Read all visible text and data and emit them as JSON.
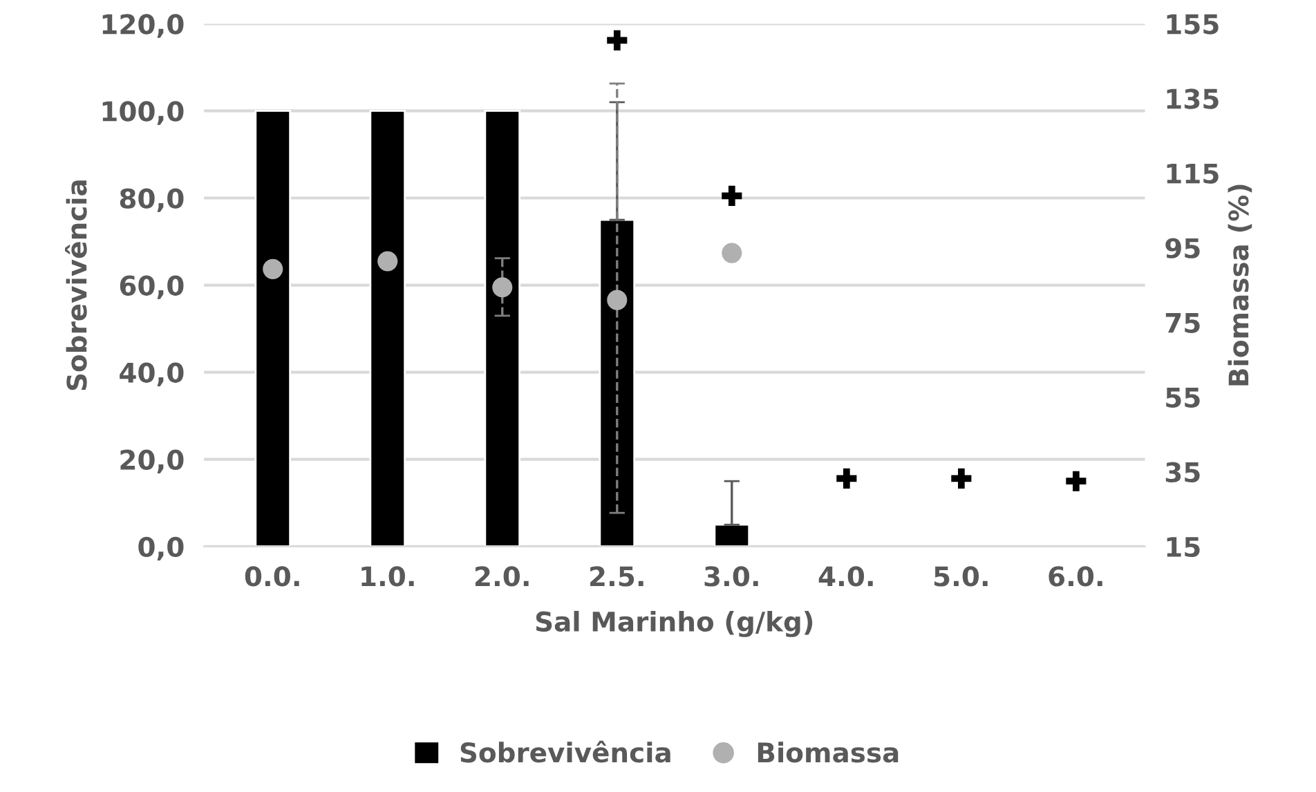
{
  "chart_data": {
    "type": "bar",
    "xlabel": "Sal Marinho (g/kg)",
    "ylabel": "Sobrevivência",
    "y2label": "Biomassa (%)",
    "categories": [
      "0.0.",
      "1.0.",
      "2.0.",
      "2.5.",
      "3.0.",
      "4.0.",
      "5.0.",
      "6.0."
    ],
    "series": [
      {
        "name": "Sobrevivência",
        "color": "#000000",
        "values": [
          100,
          100,
          100,
          75,
          5,
          null,
          null,
          null
        ],
        "errors": [
          null,
          null,
          null,
          [
            75,
            102
          ],
          [
            5,
            15
          ],
          null,
          null,
          null
        ]
      },
      {
        "name": "Biomassa",
        "type": "scatter",
        "axis": "y2",
        "marker": "circle",
        "color": "#b0b0b0",
        "values": [
          89.3,
          91.4,
          84.4,
          81,
          93.6,
          null,
          null,
          null
        ],
        "errors": [
          null,
          null,
          [
            76.8,
            92.2
          ],
          [
            24,
            139
          ],
          null,
          null,
          null,
          null
        ]
      },
      {
        "type": "scatter",
        "marker": "cross",
        "color": "#000000",
        "values": [
          null,
          null,
          null,
          116.2,
          80.5,
          15.6,
          15.6,
          15
        ]
      }
    ],
    "ylim": [
      0,
      120
    ],
    "yticks": [
      {
        "value": 0,
        "label": "0,0"
      },
      {
        "value": 20,
        "label": "20,0"
      },
      {
        "value": 40,
        "label": "40,0"
      },
      {
        "value": 60,
        "label": "60,0"
      },
      {
        "value": 80,
        "label": "80,0"
      },
      {
        "value": 100,
        "label": "100,0"
      },
      {
        "value": 120,
        "label": "120,0"
      }
    ],
    "y2lim": [
      15,
      155
    ],
    "y2ticks": [
      15,
      35,
      55,
      75,
      95,
      115,
      135,
      155
    ],
    "grid": "y",
    "legend": "bottom"
  }
}
